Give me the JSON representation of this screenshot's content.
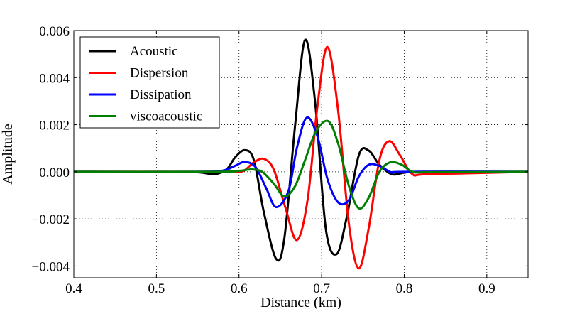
{
  "chart_data": {
    "type": "line",
    "xlabel": "Distance (km)",
    "ylabel": "Amplitude",
    "xlim": [
      0.4,
      0.95
    ],
    "ylim": [
      -0.0045,
      0.006
    ],
    "xticks": [
      0.4,
      0.5,
      0.6,
      0.7,
      0.8,
      0.9
    ],
    "xtick_labels": [
      "0.4",
      "0.5",
      "0.6",
      "0.7",
      "0.8",
      "0.9"
    ],
    "yticks": [
      -0.004,
      -0.002,
      0.0,
      0.002,
      0.004,
      0.006
    ],
    "ytick_labels": [
      "−0.004",
      "−0.002",
      "0.000",
      "0.002",
      "0.004",
      "0.006"
    ],
    "grid": true,
    "legend_position": "top-left",
    "series": [
      {
        "name": "Acoustic",
        "color": "#000000",
        "x": [
          0.4,
          0.5,
          0.55,
          0.57,
          0.585,
          0.595,
          0.607,
          0.618,
          0.63,
          0.645,
          0.655,
          0.668,
          0.68,
          0.692,
          0.705,
          0.718,
          0.73,
          0.745,
          0.757,
          0.77,
          0.785,
          0.8,
          0.82,
          0.95
        ],
        "y": [
          0.0,
          0.0,
          -2e-05,
          -0.0001,
          0.0001,
          0.0006,
          0.00092,
          0.0005,
          -0.0017,
          -0.0037,
          -0.0028,
          0.002,
          0.0056,
          0.003,
          -0.0024,
          -0.0035,
          -0.002,
          0.0007,
          0.0009,
          0.0003,
          -0.0001,
          -4e-05,
          0.0,
          0.0
        ]
      },
      {
        "name": "Dispersion",
        "color": "#ff0000",
        "x": [
          0.4,
          0.55,
          0.59,
          0.605,
          0.618,
          0.63,
          0.642,
          0.656,
          0.67,
          0.683,
          0.695,
          0.707,
          0.72,
          0.733,
          0.745,
          0.757,
          0.77,
          0.782,
          0.795,
          0.81,
          0.83,
          0.95
        ],
        "y": [
          0.0,
          0.0,
          2e-05,
          3e-05,
          0.0004,
          0.00055,
          0.0001,
          -0.0015,
          -0.0029,
          -0.0012,
          0.0028,
          0.0053,
          0.0026,
          -0.0022,
          -0.0041,
          -0.0024,
          0.0005,
          0.0013,
          0.0007,
          -0.0001,
          -0.0001,
          0.0
        ]
      },
      {
        "name": "Dissipation",
        "color": "#0000ff",
        "x": [
          0.4,
          0.55,
          0.58,
          0.595,
          0.607,
          0.62,
          0.633,
          0.645,
          0.66,
          0.67,
          0.682,
          0.695,
          0.707,
          0.72,
          0.733,
          0.745,
          0.757,
          0.77,
          0.785,
          0.8,
          0.95
        ],
        "y": [
          0.0,
          0.0,
          5e-05,
          0.00025,
          0.00042,
          0.0002,
          -0.0007,
          -0.0015,
          -0.0008,
          0.001,
          0.0023,
          0.0015,
          -0.0003,
          -0.0013,
          -0.0012,
          -0.0002,
          0.0003,
          0.00025,
          -3e-05,
          0.0,
          0.0
        ]
      },
      {
        "name": "viscoacoustic",
        "color": "#007f00",
        "x": [
          0.4,
          0.57,
          0.6,
          0.615,
          0.628,
          0.642,
          0.655,
          0.668,
          0.68,
          0.693,
          0.708,
          0.72,
          0.733,
          0.745,
          0.757,
          0.77,
          0.783,
          0.797,
          0.81,
          0.83,
          0.95
        ],
        "y": [
          0.0,
          0.0,
          4e-05,
          0.0001,
          0.0,
          -0.0005,
          -0.00105,
          -0.0006,
          0.0005,
          0.0017,
          0.00215,
          0.0012,
          -0.0006,
          -0.00155,
          -0.0011,
          0.0,
          0.0004,
          0.0003,
          0.0,
          -2e-05,
          0.0
        ]
      }
    ]
  }
}
